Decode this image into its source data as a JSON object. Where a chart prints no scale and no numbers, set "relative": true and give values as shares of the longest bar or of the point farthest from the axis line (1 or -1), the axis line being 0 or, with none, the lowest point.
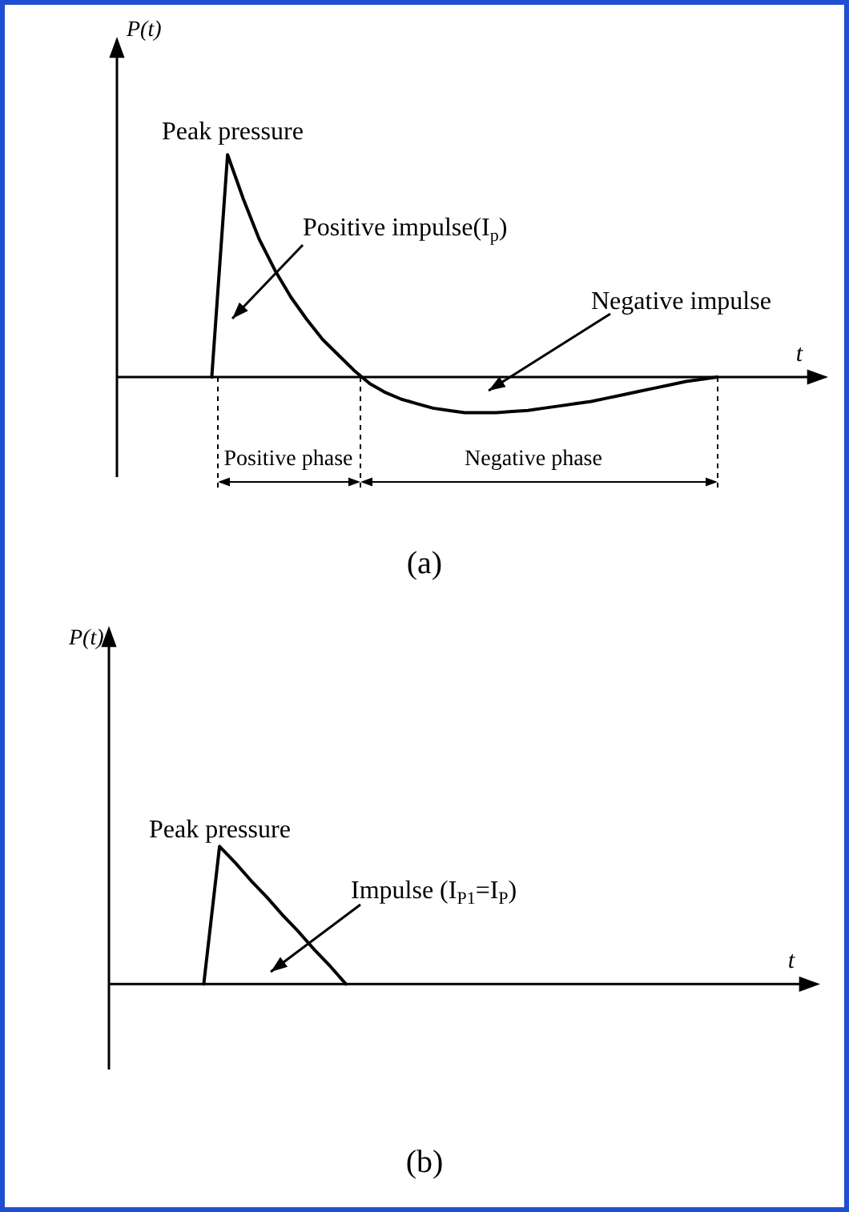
{
  "chart_data": [
    {
      "type": "line",
      "title": "(a)",
      "xlabel": "t",
      "ylabel": "P(t)",
      "relative": true,
      "categories": [
        null,
        null,
        null,
        null,
        null,
        null,
        null,
        null,
        null,
        null,
        null,
        null,
        null,
        null,
        null,
        null,
        null,
        null,
        null,
        null,
        null,
        null,
        null,
        null,
        null,
        null,
        null,
        null,
        null,
        null,
        null,
        null,
        null,
        null,
        null,
        null,
        null,
        null,
        null,
        null,
        null,
        null,
        null,
        null,
        null,
        null
      ],
      "series": [
        {
          "color": "#000000",
          "values": [
            null,
            null,
            null,
            null,
            null,
            null,
            0,
            1,
            0.8,
            0.62,
            0.48,
            0.36,
            0.26,
            0.17,
            0.1,
            0.03,
            -0.03,
            -0.07,
            -0.1,
            -0.12,
            -0.14,
            -0.15,
            -0.16,
            -0.16,
            -0.16,
            -0.155,
            -0.15,
            -0.14,
            -0.13,
            -0.12,
            -0.11,
            -0.095,
            -0.08,
            -0.065,
            -0.05,
            -0.035,
            -0.02,
            -0.01,
            0,
            null,
            null,
            null,
            null,
            null,
            null,
            null
          ]
        }
      ],
      "annotations": [
        "Peak pressure",
        "Positive impulse(I$_{p}$)",
        "Negative impulse",
        "Positive phase",
        "Negative phase"
      ]
    },
    {
      "type": "line",
      "title": "(b)",
      "xlabel": "t",
      "ylabel": "P(t)",
      "relative": true,
      "categories": [
        null,
        null,
        null,
        null,
        null,
        null,
        null,
        null,
        null,
        null,
        null,
        null,
        null,
        null,
        null,
        null,
        null,
        null,
        null,
        null,
        null,
        null,
        null,
        null,
        null,
        null,
        null,
        null,
        null,
        null,
        null,
        null,
        null,
        null,
        null,
        null,
        null,
        null,
        null,
        null,
        null,
        null,
        null,
        null,
        null,
        null
      ],
      "series": [
        {
          "color": "#000000",
          "values": [
            null,
            null,
            null,
            null,
            null,
            null,
            0,
            1,
            0.88,
            0.75,
            0.63,
            0.5,
            0.38,
            0.25,
            0.13,
            0,
            null,
            null,
            null,
            null,
            null,
            null,
            null,
            null,
            null,
            null,
            null,
            null,
            null,
            null,
            null,
            null,
            null,
            null,
            null,
            null,
            null,
            null,
            null,
            null,
            null,
            null,
            null,
            null,
            null,
            null
          ]
        }
      ],
      "annotations": [
        "Peak pressure",
        "Impulse (I$_{P1}$=I$_{P}$)"
      ]
    }
  ]
}
